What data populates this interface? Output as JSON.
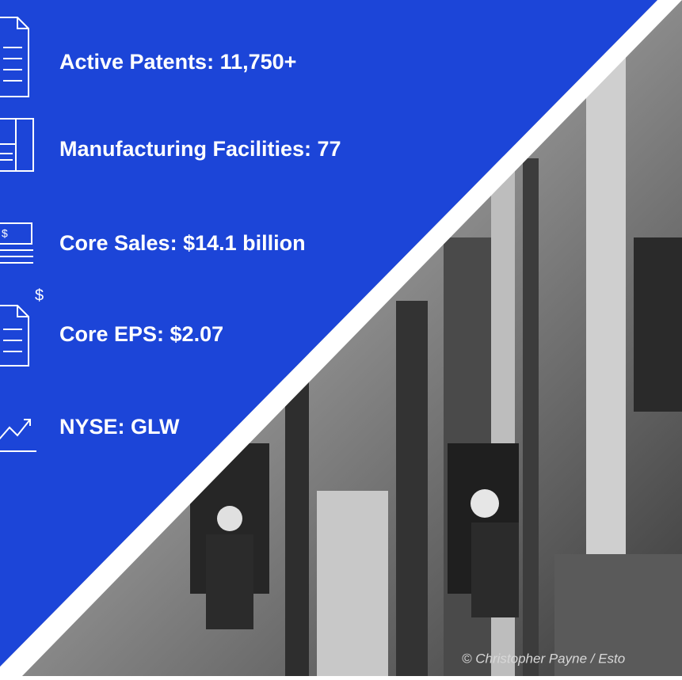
{
  "stats": [
    {
      "label": "Active Patents: 11,750+"
    },
    {
      "label": "Manufacturing Facilities: 77"
    },
    {
      "label": "Core Sales: $14.1 billion"
    },
    {
      "label": "Core EPS: $2.07"
    },
    {
      "label": "NYSE: GLW"
    }
  ],
  "photo": {
    "credit": "© Christopher Payne / Esto"
  }
}
